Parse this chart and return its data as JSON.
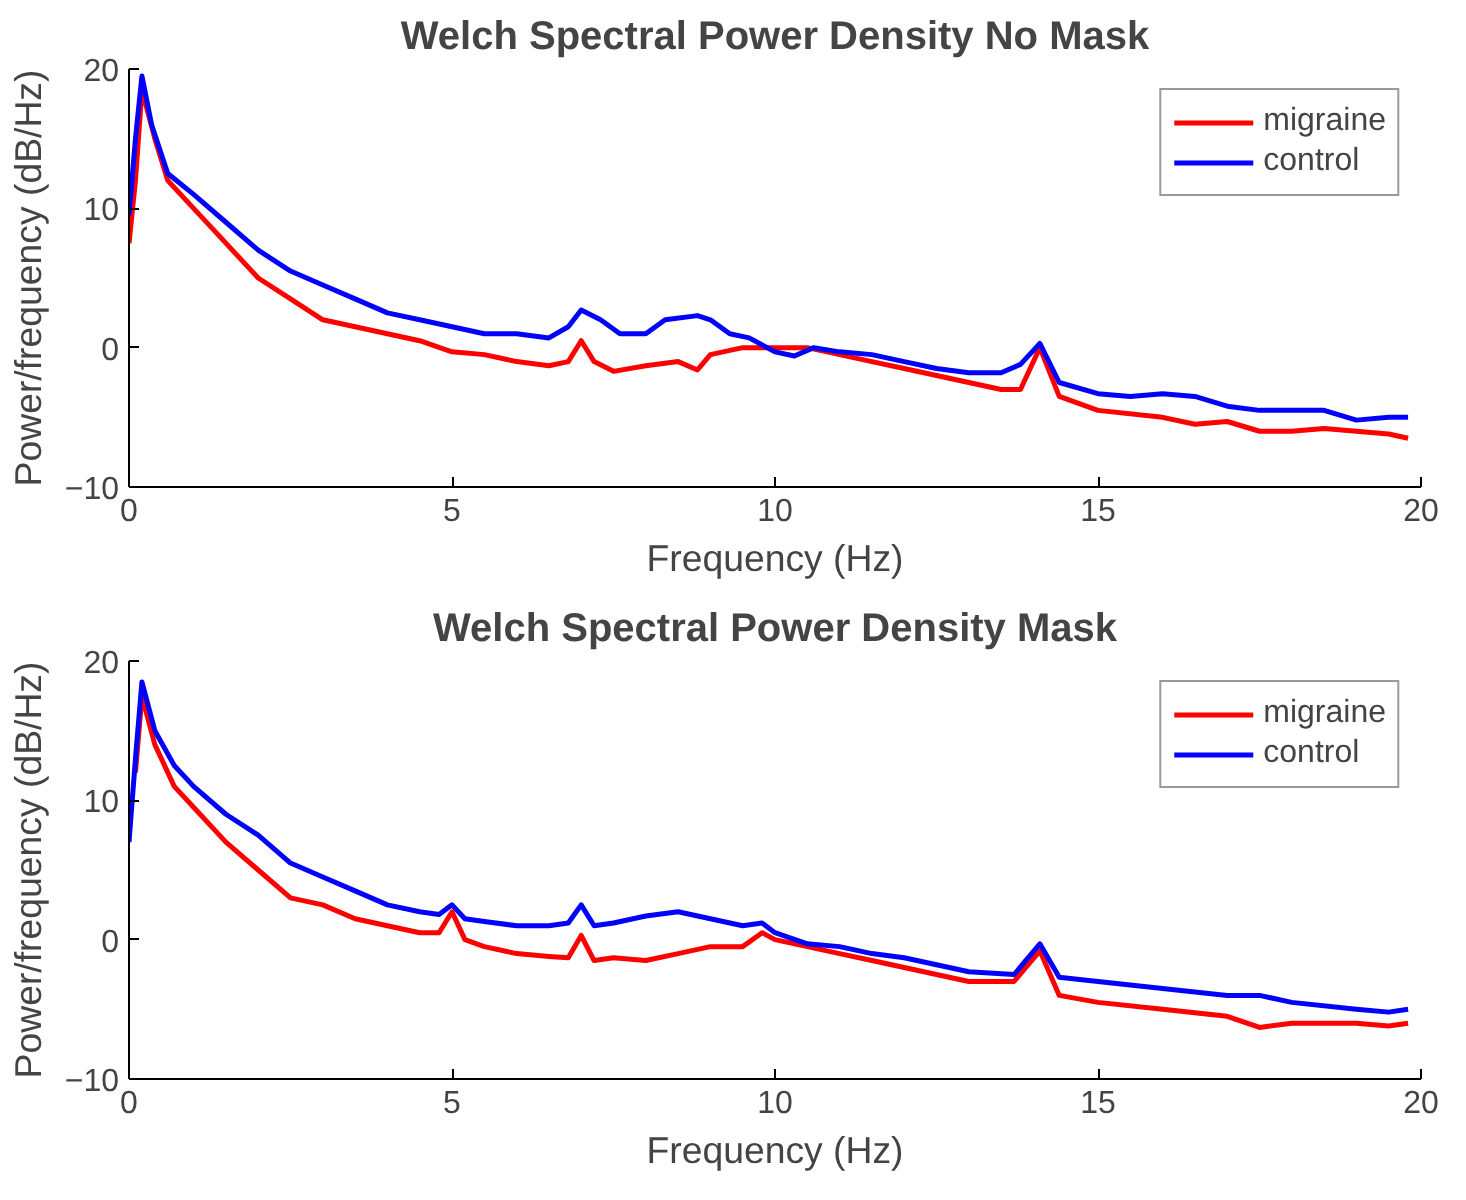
{
  "chart_data": [
    {
      "type": "line",
      "title": "Welch Spectral Power Density No Mask",
      "xlabel": "Frequency (Hz)",
      "ylabel": "Power/frequency (dB/Hz)",
      "xlim": [
        0,
        20
      ],
      "ylim": [
        -10,
        20
      ],
      "xticks": [
        0,
        5,
        10,
        15,
        20
      ],
      "yticks": [
        -10,
        0,
        10,
        20
      ],
      "grid": false,
      "legend": "top right",
      "line_style": "solid",
      "series": [
        {
          "name": "migraine",
          "color": "#ff0000",
          "x": [
            0,
            0.1,
            0.2,
            0.4,
            0.6,
            1,
            1.5,
            2,
            2.5,
            3,
            3.5,
            4,
            4.5,
            5,
            5.5,
            6,
            6.5,
            6.8,
            7,
            7.2,
            7.5,
            8,
            8.5,
            8.8,
            9,
            9.5,
            10,
            10.5,
            11,
            11.5,
            12,
            12.5,
            13,
            13.5,
            13.8,
            14.1,
            14.4,
            15,
            16,
            16.5,
            17,
            17.5,
            18,
            18.5,
            19,
            19.5,
            19.8
          ],
          "values": [
            7.5,
            12,
            18.5,
            15,
            12,
            10,
            7.5,
            5,
            3.5,
            2,
            1.5,
            1,
            0.5,
            -0.3,
            -0.5,
            -1,
            -1.3,
            -1,
            0.5,
            -1,
            -1.7,
            -1.3,
            -1,
            -1.6,
            -0.5,
            0,
            0,
            0,
            -0.5,
            -1,
            -1.5,
            -2,
            -2.5,
            -3,
            -3,
            0,
            -3.5,
            -4.5,
            -5,
            -5.5,
            -5.3,
            -6,
            -6,
            -5.8,
            -6,
            -6.2,
            -6.5
          ]
        },
        {
          "name": "control",
          "color": "#0000ff",
          "x": [
            0,
            0.1,
            0.2,
            0.35,
            0.6,
            1,
            1.5,
            2,
            2.5,
            3,
            3.5,
            4,
            4.5,
            5,
            5.5,
            6,
            6.5,
            6.8,
            7,
            7.3,
            7.6,
            8,
            8.3,
            8.8,
            9,
            9.3,
            9.6,
            10,
            10.3,
            10.6,
            11,
            11.5,
            12,
            12.5,
            13,
            13.5,
            13.8,
            14.1,
            14.4,
            15,
            15.5,
            16,
            16.5,
            17,
            17.5,
            18,
            18.5,
            19,
            19.5,
            19.8
          ],
          "values": [
            9.5,
            15,
            19.5,
            16,
            12.5,
            11,
            9,
            7,
            5.5,
            4.5,
            3.5,
            2.5,
            2,
            1.5,
            1,
            1,
            0.7,
            1.5,
            2.7,
            2,
            1,
            1,
            2,
            2.3,
            2,
            1,
            0.7,
            -0.3,
            -0.6,
            0,
            -0.3,
            -0.5,
            -1,
            -1.5,
            -1.8,
            -1.8,
            -1.2,
            0.3,
            -2.5,
            -3.3,
            -3.5,
            -3.3,
            -3.5,
            -4.2,
            -4.5,
            -4.5,
            -4.5,
            -5.2,
            -5,
            -5
          ]
        }
      ]
    },
    {
      "type": "line",
      "title": "Welch Spectral Power Density Mask",
      "xlabel": "Frequency (Hz)",
      "ylabel": "Power/frequency (dB/Hz)",
      "xlim": [
        0,
        20
      ],
      "ylim": [
        -10,
        20
      ],
      "xticks": [
        0,
        5,
        10,
        15,
        20
      ],
      "yticks": [
        -10,
        0,
        10,
        20
      ],
      "grid": false,
      "legend": "top right",
      "line_style": "solid",
      "series": [
        {
          "name": "migraine",
          "color": "#ff0000",
          "x": [
            0.1,
            0.2,
            0.4,
            0.7,
            1,
            1.5,
            2,
            2.5,
            3,
            3.5,
            4,
            4.5,
            4.8,
            5,
            5.2,
            5.5,
            6,
            6.5,
            6.8,
            7,
            7.2,
            7.5,
            8,
            8.5,
            9,
            9.5,
            9.8,
            10,
            10.5,
            11,
            11.5,
            12,
            12.5,
            13,
            13.7,
            14.1,
            14.4,
            15,
            16,
            17,
            17.5,
            18,
            19,
            19.5,
            19.8
          ],
          "values": [
            12,
            17.5,
            14,
            11,
            9.5,
            7,
            5,
            3,
            2.5,
            1.5,
            1,
            0.5,
            0.5,
            2,
            0,
            -0.5,
            -1,
            -1.2,
            -1.3,
            0.3,
            -1.5,
            -1.3,
            -1.5,
            -1,
            -0.5,
            -0.5,
            0.5,
            0,
            -0.5,
            -1,
            -1.5,
            -2,
            -2.5,
            -3,
            -3,
            -0.8,
            -4,
            -4.5,
            -5,
            -5.5,
            -6.3,
            -6,
            -6,
            -6.2,
            -6
          ]
        },
        {
          "name": "control",
          "color": "#0000ff",
          "x": [
            0,
            0.1,
            0.2,
            0.4,
            0.7,
            1,
            1.5,
            2,
            2.5,
            3,
            3.5,
            4,
            4.5,
            4.8,
            5,
            5.2,
            5.5,
            6,
            6.5,
            6.8,
            7,
            7.2,
            7.5,
            8,
            8.5,
            9,
            9.5,
            9.8,
            10,
            10.5,
            11,
            11.5,
            12,
            12.5,
            13,
            13.7,
            14.1,
            14.4,
            15,
            16,
            17,
            17.5,
            18,
            19,
            19.5,
            19.8
          ],
          "values": [
            7,
            13,
            18.5,
            15,
            12.5,
            11,
            9,
            7.5,
            5.5,
            4.5,
            3.5,
            2.5,
            2,
            1.8,
            2.5,
            1.5,
            1.3,
            1,
            1,
            1.2,
            2.5,
            1,
            1.2,
            1.7,
            2,
            1.5,
            1,
            1.2,
            0.5,
            -0.3,
            -0.5,
            -1,
            -1.3,
            -1.8,
            -2.3,
            -2.5,
            -0.3,
            -2.7,
            -3,
            -3.5,
            -4,
            -4,
            -4.5,
            -5,
            -5.2,
            -5
          ]
        }
      ]
    }
  ]
}
